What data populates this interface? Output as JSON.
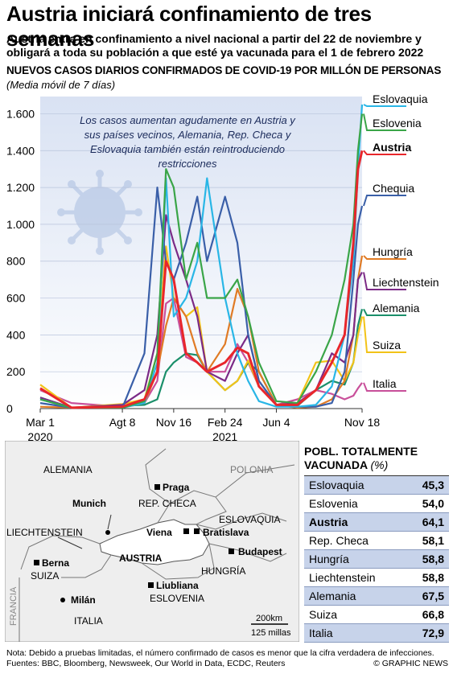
{
  "title": "Austria iniciará confinamiento de tres semanas",
  "subtitle": "Austria entra en confinamiento a nivel nacional a partir del 22 de noviembre y obligará a toda su población a que esté ya vacunada para el 1 de febrero 2022",
  "chart_data": {
    "type": "line",
    "title": "NUEVOS CASOS DIARIOS CONFIRMADOS DE COVID-19 POR MILLÓN DE PERSONAS",
    "subtitle": "(Media móvil de 7 días)",
    "annotation": "Los casos aumentan agudamente en Austria y sus países vecinos, Alemania, Rep. Checa y Eslovaquia también están reintroduciendo restricciones",
    "ylim": [
      0,
      1650
    ],
    "yticks": [
      0,
      200,
      400,
      600,
      800,
      "1.000",
      "1.200",
      "1.400",
      "1.600"
    ],
    "ytick_values": [
      0,
      200,
      400,
      600,
      800,
      1000,
      1200,
      1400,
      1600
    ],
    "x_tick_labels": [
      "Mar 1",
      "Agt 8",
      "Nov 16",
      "Feb 24",
      "Jun 4",
      "Nov 18"
    ],
    "x_year_labels": [
      "2020",
      "2021"
    ],
    "x": [
      "2020-03-01",
      "2020-05-01",
      "2020-08-08",
      "2020-09-20",
      "2020-10-15",
      "2020-11-01",
      "2020-11-16",
      "2020-12-10",
      "2021-01-01",
      "2021-01-20",
      "2021-02-24",
      "2021-03-20",
      "2021-04-10",
      "2021-05-01",
      "2021-06-04",
      "2021-07-15",
      "2021-08-20",
      "2021-09-20",
      "2021-10-15",
      "2021-11-01",
      "2021-11-10",
      "2021-11-18"
    ],
    "series": [
      {
        "name": "Eslovaquia",
        "color": "#29b6e6",
        "values": [
          50,
          5,
          5,
          30,
          250,
          1250,
          500,
          600,
          800,
          1250,
          600,
          300,
          150,
          40,
          10,
          10,
          20,
          120,
          400,
          800,
          1300,
          1650
        ]
      },
      {
        "name": "Eslovenia",
        "color": "#3aa548",
        "values": [
          50,
          5,
          5,
          40,
          300,
          1300,
          1200,
          700,
          900,
          600,
          600,
          700,
          500,
          250,
          40,
          30,
          200,
          400,
          700,
          1000,
          1400,
          1600
        ]
      },
      {
        "name": "Austria",
        "color": "#e8262b",
        "values": [
          110,
          5,
          10,
          50,
          200,
          800,
          700,
          300,
          250,
          200,
          250,
          330,
          300,
          120,
          20,
          20,
          100,
          250,
          400,
          900,
          1300,
          1400
        ]
      },
      {
        "name": "Chequia",
        "color": "#3a5fa8",
        "values": [
          30,
          5,
          5,
          300,
          1200,
          800,
          700,
          900,
          1150,
          800,
          1150,
          900,
          400,
          150,
          20,
          10,
          10,
          30,
          200,
          700,
          1000,
          1100
        ]
      },
      {
        "name": "Hungría",
        "color": "#e07b25",
        "values": [
          10,
          5,
          5,
          30,
          200,
          450,
          600,
          500,
          300,
          200,
          350,
          650,
          500,
          200,
          20,
          5,
          10,
          50,
          150,
          400,
          700,
          830
        ]
      },
      {
        "name": "Liechtenstein",
        "color": "#7b2a86",
        "values": [
          60,
          5,
          20,
          100,
          400,
          1050,
          900,
          700,
          500,
          200,
          150,
          300,
          400,
          150,
          20,
          30,
          100,
          300,
          250,
          400,
          700,
          740
        ]
      },
      {
        "name": "Alemania",
        "color": "#1a8f6a",
        "values": [
          60,
          5,
          15,
          20,
          50,
          200,
          250,
          300,
          290,
          200,
          100,
          150,
          250,
          200,
          20,
          15,
          100,
          150,
          130,
          250,
          450,
          540
        ]
      },
      {
        "name": "Suiza",
        "color": "#f2c318",
        "values": [
          130,
          5,
          25,
          50,
          300,
          880,
          600,
          500,
          550,
          200,
          100,
          150,
          260,
          120,
          20,
          30,
          250,
          260,
          150,
          250,
          400,
          500
        ]
      },
      {
        "name": "Italia",
        "color": "#c84f9a",
        "values": [
          100,
          30,
          10,
          30,
          150,
          570,
          600,
          280,
          250,
          200,
          200,
          350,
          250,
          120,
          20,
          50,
          100,
          80,
          50,
          70,
          110,
          140
        ]
      }
    ]
  },
  "map": {
    "countries": {
      "alemania": "ALEMANIA",
      "polonia": "POLONIA",
      "rep_checa": "REP. CHECA",
      "eslovaquia": "ESLOVAQUIA",
      "liechtenstein": "LIECHTENSTEIN",
      "austria": "AUSTRIA",
      "hungria": "HUNGRÍA",
      "suiza": "SUIZA",
      "eslovenia": "ESLOVENIA",
      "italia": "ITALIA",
      "francia": "FRANCIA"
    },
    "cities": {
      "praga": "Praga",
      "munich": "Munich",
      "viena": "Viena",
      "bratislava": "Bratislava",
      "berna": "Berna",
      "budapest": "Budapest",
      "liubliana": "Liubliana",
      "milan": "Milán"
    },
    "scale_km": "200km",
    "scale_mi": "125 millas"
  },
  "table": {
    "title": "POBL. TOTALMENTE VACUNADA",
    "unit": "(%)",
    "rows": [
      {
        "name": "Eslovaquia",
        "value": "45,3"
      },
      {
        "name": "Eslovenia",
        "value": "54,0"
      },
      {
        "name": "Austria",
        "value": "64,1"
      },
      {
        "name": "Rep. Checa",
        "value": "58,1"
      },
      {
        "name": "Hungría",
        "value": "58,8"
      },
      {
        "name": "Liechtenstein",
        "value": "58,8"
      },
      {
        "name": "Alemania",
        "value": "67,5"
      },
      {
        "name": "Suiza",
        "value": "66,8"
      },
      {
        "name": "Italia",
        "value": "72,9"
      }
    ]
  },
  "footer": "Nota: Debido a pruebas limitadas, el número confirmado de casos es menor que la cifra verdadera de infecciones. Fuentes: BBC, Bloomberg, Newsweek, Our World in Data, ECDC, Reuters",
  "credit": "© GRAPHIC NEWS"
}
